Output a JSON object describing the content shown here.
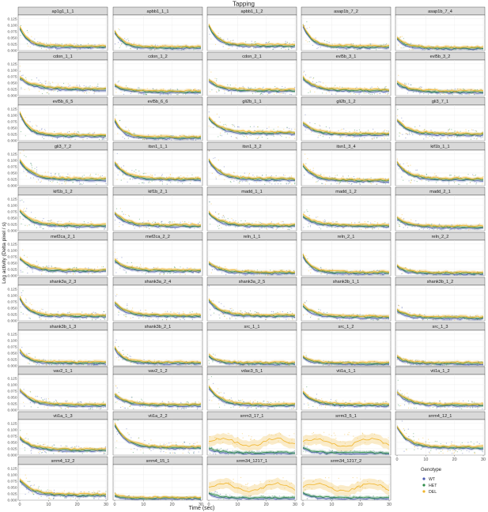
{
  "chart_data": {
    "type": "line",
    "title": "Tapping",
    "xlabel": "Time (sec)",
    "ylabel": "Log activity (Delta pixel / s)",
    "xlim": [
      0,
      30
    ],
    "ylim": [
      0,
      0.14
    ],
    "x_ticks": [
      0,
      10,
      20,
      30
    ],
    "y_ticks": [
      0.0,
      0.025,
      0.05,
      0.075,
      0.1,
      0.125
    ],
    "y_tick_labels": [
      "0.000",
      "0.025",
      "0.050",
      "0.075",
      "0.100",
      "0.125"
    ],
    "grid": true,
    "legend": {
      "title": "Genotype",
      "placement": "bottom-right",
      "entries": [
        "WT",
        "HET",
        "DEL"
      ]
    },
    "series_colors": {
      "WT": "#4c5bb0",
      "HET": "#2f8c4a",
      "DEL": "#f0b429"
    },
    "panels": [
      {
        "name": "ap1g1_1_1",
        "start": 0.09,
        "end": 0.015,
        "tau": 3
      },
      {
        "name": "apbb1_1_1",
        "start": 0.075,
        "end": 0.012,
        "tau": 3
      },
      {
        "name": "apbb1_1_2",
        "start": 0.1,
        "end": 0.02,
        "tau": 3
      },
      {
        "name": "asap1b_7_2",
        "start": 0.1,
        "end": 0.015,
        "tau": 3
      },
      {
        "name": "asap1b_7_4",
        "start": 0.05,
        "end": 0.01,
        "tau": 3
      },
      {
        "name": "cdon_1_1",
        "start": 0.07,
        "end": 0.025,
        "tau": 5
      },
      {
        "name": "cdon_1_2",
        "start": 0.04,
        "end": 0.015,
        "tau": 4
      },
      {
        "name": "cdon_2_1",
        "start": 0.06,
        "end": 0.02,
        "tau": 4
      },
      {
        "name": "evl5b_3_1",
        "start": 0.07,
        "end": 0.02,
        "tau": 4
      },
      {
        "name": "evl5b_3_2",
        "start": 0.05,
        "end": 0.015,
        "tau": 4
      },
      {
        "name": "evl5b_6_5",
        "start": 0.11,
        "end": 0.02,
        "tau": 3
      },
      {
        "name": "evl5b_6_6",
        "start": 0.08,
        "end": 0.012,
        "tau": 3
      },
      {
        "name": "gli2b_1_1",
        "start": 0.09,
        "end": 0.03,
        "tau": 4
      },
      {
        "name": "gli2b_1_2",
        "start": 0.07,
        "end": 0.025,
        "tau": 4
      },
      {
        "name": "gli3_7_1",
        "start": 0.08,
        "end": 0.025,
        "tau": 4
      },
      {
        "name": "gli3_7_2",
        "start": 0.1,
        "end": 0.025,
        "tau": 4
      },
      {
        "name": "itsn1_1_1",
        "start": 0.09,
        "end": 0.025,
        "tau": 4
      },
      {
        "name": "itsn1_3_2",
        "start": 0.1,
        "end": 0.025,
        "tau": 4
      },
      {
        "name": "itsn1_3_4",
        "start": 0.08,
        "end": 0.02,
        "tau": 4
      },
      {
        "name": "kif1b_1_1",
        "start": 0.09,
        "end": 0.025,
        "tau": 4
      },
      {
        "name": "kif1b_1_2",
        "start": 0.08,
        "end": 0.02,
        "tau": 4
      },
      {
        "name": "kif1b_2_1",
        "start": 0.07,
        "end": 0.02,
        "tau": 4
      },
      {
        "name": "madd_1_1",
        "start": 0.07,
        "end": 0.02,
        "tau": 4
      },
      {
        "name": "madd_1_2",
        "start": 0.06,
        "end": 0.02,
        "tau": 4
      },
      {
        "name": "madd_2_1",
        "start": 0.05,
        "end": 0.015,
        "tau": 4
      },
      {
        "name": "mef2ca_2_1",
        "start": 0.07,
        "end": 0.02,
        "tau": 4
      },
      {
        "name": "mef2ca_2_2",
        "start": 0.06,
        "end": 0.02,
        "tau": 4
      },
      {
        "name": "reln_1_1",
        "start": 0.05,
        "end": 0.012,
        "tau": 4
      },
      {
        "name": "reln_2_1",
        "start": 0.08,
        "end": 0.012,
        "tau": 3
      },
      {
        "name": "reln_2_2",
        "start": 0.04,
        "end": 0.01,
        "tau": 3
      },
      {
        "name": "shank3a_2_3",
        "start": 0.09,
        "end": 0.02,
        "tau": 3
      },
      {
        "name": "shank3a_2_4",
        "start": 0.07,
        "end": 0.02,
        "tau": 4
      },
      {
        "name": "shank3a_2_5",
        "start": 0.08,
        "end": 0.02,
        "tau": 4
      },
      {
        "name": "shank3b_1_1",
        "start": 0.06,
        "end": 0.015,
        "tau": 4
      },
      {
        "name": "shank3b_1_2",
        "start": 0.04,
        "end": 0.012,
        "tau": 4
      },
      {
        "name": "shank3b_1_3",
        "start": 0.06,
        "end": 0.012,
        "tau": 3
      },
      {
        "name": "shank3b_2_1",
        "start": 0.07,
        "end": 0.012,
        "tau": 3
      },
      {
        "name": "src_1_1",
        "start": 0.04,
        "end": 0.01,
        "tau": 3
      },
      {
        "name": "src_1_2",
        "start": 0.035,
        "end": 0.01,
        "tau": 3
      },
      {
        "name": "src_1_3",
        "start": 0.035,
        "end": 0.01,
        "tau": 3
      },
      {
        "name": "vav2_1_1",
        "start": 0.08,
        "end": 0.02,
        "tau": 4
      },
      {
        "name": "vav2_1_2",
        "start": 0.06,
        "end": 0.02,
        "tau": 4
      },
      {
        "name": "vdac3_5_1",
        "start": 0.09,
        "end": 0.02,
        "tau": 4
      },
      {
        "name": "vti1a_1_1",
        "start": 0.07,
        "end": 0.02,
        "tau": 4
      },
      {
        "name": "vti1a_1_2",
        "start": 0.07,
        "end": 0.02,
        "tau": 4
      },
      {
        "name": "vti1a_1_3",
        "start": 0.07,
        "end": 0.02,
        "tau": 4
      },
      {
        "name": "vti1a_2_2",
        "start": 0.12,
        "end": 0.03,
        "tau": 4
      },
      {
        "name": "srrm3_17_1",
        "start": 0.03,
        "end": 0.01,
        "tau": 3
      },
      {
        "name": "srrm3_5_1",
        "start": 0.03,
        "end": 0.01,
        "tau": 3
      },
      {
        "name": "srrm4_12_1",
        "start": 0.11,
        "end": 0.03,
        "tau": 4
      },
      {
        "name": "srrm4_12_2",
        "start": 0.08,
        "end": 0.02,
        "tau": 4
      },
      {
        "name": "srrm4_15_1",
        "start": 0.02,
        "end": 0.008,
        "tau": 3
      },
      {
        "name": "srrm34_1217_1",
        "start": 0.03,
        "end": 0.01,
        "tau": 3
      },
      {
        "name": "srrm34_1217_2",
        "start": 0.03,
        "end": 0.01,
        "tau": 3
      }
    ],
    "del_elevated": [
      "srrm3_17_1",
      "srrm3_5_1",
      "srrm34_1217_1",
      "srrm34_1217_2"
    ]
  }
}
